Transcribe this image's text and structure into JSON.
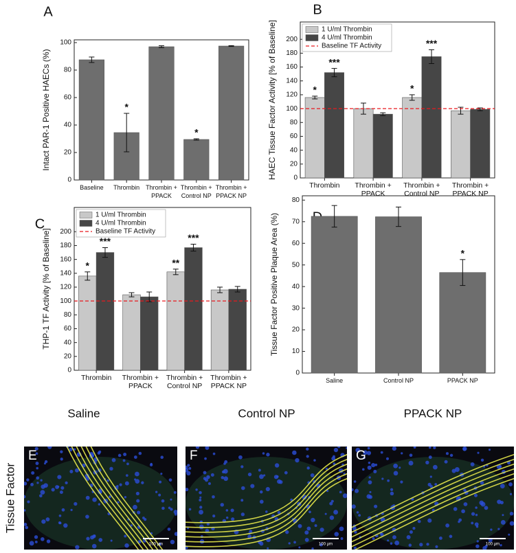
{
  "chart_data": [
    {
      "type": "bar",
      "panel": "A",
      "ylabel": "Intact PAR-1 Positive HAECs (%)",
      "categories": [
        "Baseline",
        "Thrombin",
        "Thrombin + PPACK",
        "Thrombin + Control NP",
        "Thrombin + PPACK NP"
      ],
      "values": [
        87.5,
        34.5,
        97,
        29.5,
        97.5
      ],
      "errors": [
        2,
        14,
        0.7,
        0.5,
        0.3
      ],
      "significance": [
        null,
        "*",
        null,
        "*",
        null
      ],
      "color": "#6e6e6e",
      "ylim": [
        0,
        102
      ],
      "yticks": [
        0,
        20,
        40,
        60,
        80,
        100
      ]
    },
    {
      "type": "bar",
      "panel": "B",
      "ylabel": "HAEC Tissue Factor Activity [% of Baseline]",
      "categories": [
        "Thrombin",
        "Thrombin + PPACK",
        "Thrombin + Control NP",
        "Thrombin + PPACK NP"
      ],
      "series": [
        {
          "name": "1 U/ml Thrombin",
          "color": "#c8c8c8",
          "values": [
            116,
            100,
            116,
            97
          ],
          "errors": [
            2,
            8,
            4,
            5
          ],
          "significance": [
            "*",
            null,
            "*",
            null
          ]
        },
        {
          "name": "4 U/ml Thrombin",
          "color": "#464646",
          "values": [
            152,
            92,
            175,
            99
          ],
          "errors": [
            6,
            2,
            10,
            2
          ],
          "significance": [
            "***",
            null,
            "***",
            null
          ]
        }
      ],
      "baseline": {
        "name": "Baseline TF Activity",
        "value": 100,
        "color": "#e8191e"
      },
      "legend": "upper left",
      "ylim": [
        0,
        225
      ],
      "yticks": [
        0,
        20,
        40,
        60,
        80,
        100,
        120,
        140,
        160,
        180,
        200
      ]
    },
    {
      "type": "bar",
      "panel": "C",
      "ylabel": "THP-1 TF Activity [% of Baseline]",
      "categories": [
        "Thrombin",
        "Thrombin + PPACK",
        "Thrombin + Control NP",
        "Thrombin + PPACK NP"
      ],
      "series": [
        {
          "name": "1 U/ml Thrombin",
          "color": "#c8c8c8",
          "values": [
            136,
            109,
            142,
            116
          ],
          "errors": [
            6,
            3,
            4,
            4
          ],
          "significance": [
            "*",
            null,
            "**",
            null
          ]
        },
        {
          "name": "4 U/ml Thrombin",
          "color": "#464646",
          "values": [
            170,
            106,
            177,
            117
          ],
          "errors": [
            7,
            7,
            5,
            4
          ],
          "significance": [
            "***",
            null,
            "***",
            null
          ]
        }
      ],
      "baseline": {
        "name": "Baseline TF Activity",
        "value": 100,
        "color": "#e8191e"
      },
      "legend": "upper left",
      "ylim": [
        0,
        235
      ],
      "yticks": [
        0,
        20,
        40,
        60,
        80,
        100,
        120,
        140,
        160,
        180,
        200
      ]
    },
    {
      "type": "bar",
      "panel": "D",
      "ylabel": "Tissue Factor Positive Plaque Area (%)",
      "categories": [
        "Saline",
        "Control NP",
        "PPACK NP"
      ],
      "values": [
        72.5,
        72.3,
        46.5
      ],
      "errors": [
        5,
        4.5,
        6
      ],
      "significance": [
        null,
        null,
        "*"
      ],
      "color": "#6e6e6e",
      "ylim": [
        0,
        82
      ],
      "yticks": [
        0,
        10,
        20,
        30,
        40,
        50,
        60,
        70,
        80
      ]
    }
  ],
  "micrographs": {
    "row_label": "Tissue Factor",
    "panels": [
      {
        "title": "Saline",
        "letter": "E",
        "scale": "100 µm"
      },
      {
        "title": "Control NP",
        "letter": "F",
        "scale": "100 µm"
      },
      {
        "title": "PPACK NP",
        "letter": "G",
        "scale": "100 µm"
      }
    ]
  }
}
